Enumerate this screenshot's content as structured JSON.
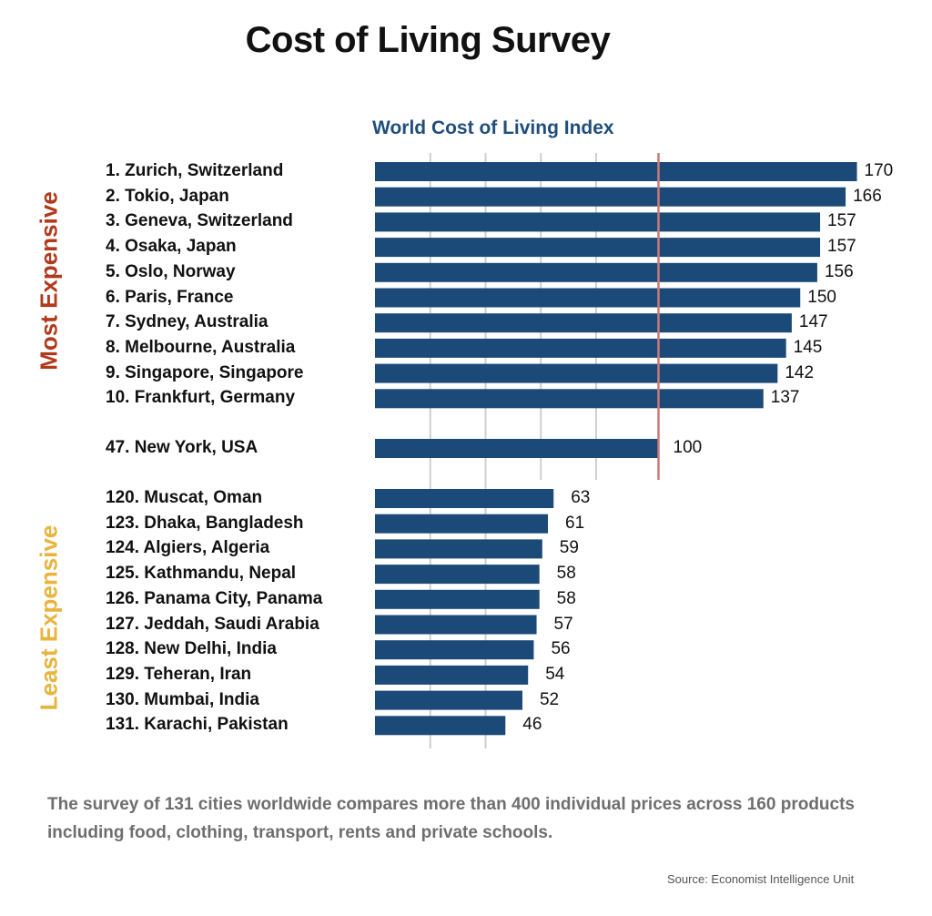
{
  "title": "Cost of Living Survey",
  "footnote": "The survey of 131 cities worldwide compares more than 400 individual prices across 160 products including food, clothing, transport, rents and private schools.",
  "source": "Source: Economist Intelligence Unit",
  "colors": {
    "bar": "#1b4a78",
    "subtitle": "#1f4e7c",
    "most": "#b13a1c",
    "least": "#e8b43c",
    "reference": "#c97a78",
    "grid": "#cfcfcf"
  },
  "chart_data": {
    "type": "bar",
    "orientation": "horizontal",
    "title": "World Cost of Living Index",
    "reference_value": 100,
    "xlim": [
      0,
      170
    ],
    "grid_values": [
      19.5,
      39,
      58.5,
      78
    ],
    "groups": [
      {
        "name": "Most Expensive",
        "items": [
          {
            "label": "1. Zurich, Switzerland",
            "value": 170
          },
          {
            "label": "2. Tokio, Japan",
            "value": 166
          },
          {
            "label": "3. Geneva, Switzerland",
            "value": 157
          },
          {
            "label": "4. Osaka, Japan",
            "value": 157
          },
          {
            "label": "5. Oslo, Norway",
            "value": 156
          },
          {
            "label": "6. Paris, France",
            "value": 150
          },
          {
            "label": "7. Sydney, Australia",
            "value": 147
          },
          {
            "label": "8. Melbourne, Australia",
            "value": 145
          },
          {
            "label": "9. Singapore, Singapore",
            "value": 142
          },
          {
            "label": "10. Frankfurt, Germany",
            "value": 137
          }
        ]
      },
      {
        "name": "",
        "items": [
          {
            "label": "47. New York, USA",
            "value": 100
          }
        ]
      },
      {
        "name": "Least Expensive",
        "items": [
          {
            "label": "120. Muscat, Oman",
            "value": 63
          },
          {
            "label": "123. Dhaka, Bangladesh",
            "value": 61
          },
          {
            "label": "124. Algiers, Algeria",
            "value": 59
          },
          {
            "label": "125. Kathmandu, Nepal",
            "value": 58
          },
          {
            "label": "126. Panama City, Panama",
            "value": 58
          },
          {
            "label": "127. Jeddah, Saudi Arabia",
            "value": 57
          },
          {
            "label": "128. New Delhi, India",
            "value": 56
          },
          {
            "label": "129. Teheran, Iran",
            "value": 54
          },
          {
            "label": "130. Mumbai, India",
            "value": 52
          },
          {
            "label": "131. Karachi, Pakistan",
            "value": 46
          }
        ]
      }
    ]
  }
}
